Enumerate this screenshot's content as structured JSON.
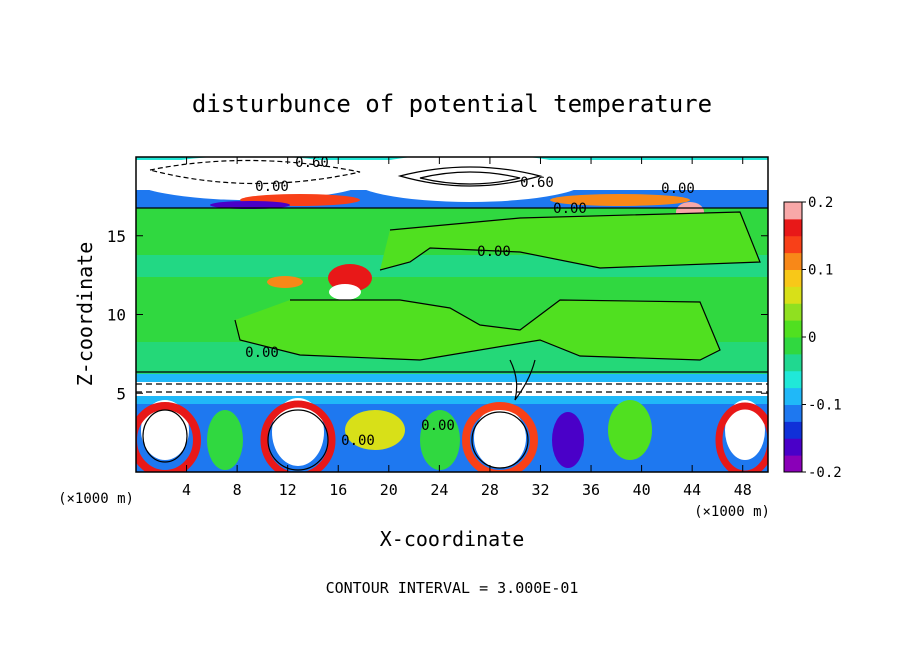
{
  "chart_data": {
    "type": "heatmap",
    "title": "disturbunce of potential temperature",
    "xlabel": "X-coordinate",
    "ylabel": "Z-coordinate",
    "x_unit": "(×1000 m)",
    "x_unit_right": "(×1000 m)",
    "xlim": [
      0,
      50
    ],
    "ylim": [
      0,
      20
    ],
    "x_ticks": [
      4,
      8,
      12,
      16,
      20,
      24,
      28,
      32,
      36,
      40,
      44,
      48
    ],
    "y_ticks": [
      5,
      10,
      15
    ],
    "colorbar": {
      "range": [
        -0.2,
        0.2
      ],
      "ticks": [
        "0.2",
        "0.1",
        "0",
        "-0.1",
        "-0.2"
      ],
      "tick_values": [
        0.2,
        0.1,
        0,
        -0.1,
        -0.2
      ],
      "colors": [
        "#8a00b8",
        "#4a00c8",
        "#1030d8",
        "#1e78f0",
        "#20b8f8",
        "#20e8d8",
        "#20d890",
        "#30d840",
        "#50e020",
        "#90e020",
        "#d8e018",
        "#f8c818",
        "#f88818",
        "#f84018",
        "#e81818",
        "#f8a8a8"
      ]
    },
    "contour_labels": [
      "0.60",
      "0.00",
      "0.60",
      "0.00",
      "0.00",
      "0.00",
      "0.00",
      "0.00",
      "0.00"
    ],
    "footer": "CONTOUR INTERVAL = 3.000E-01"
  }
}
